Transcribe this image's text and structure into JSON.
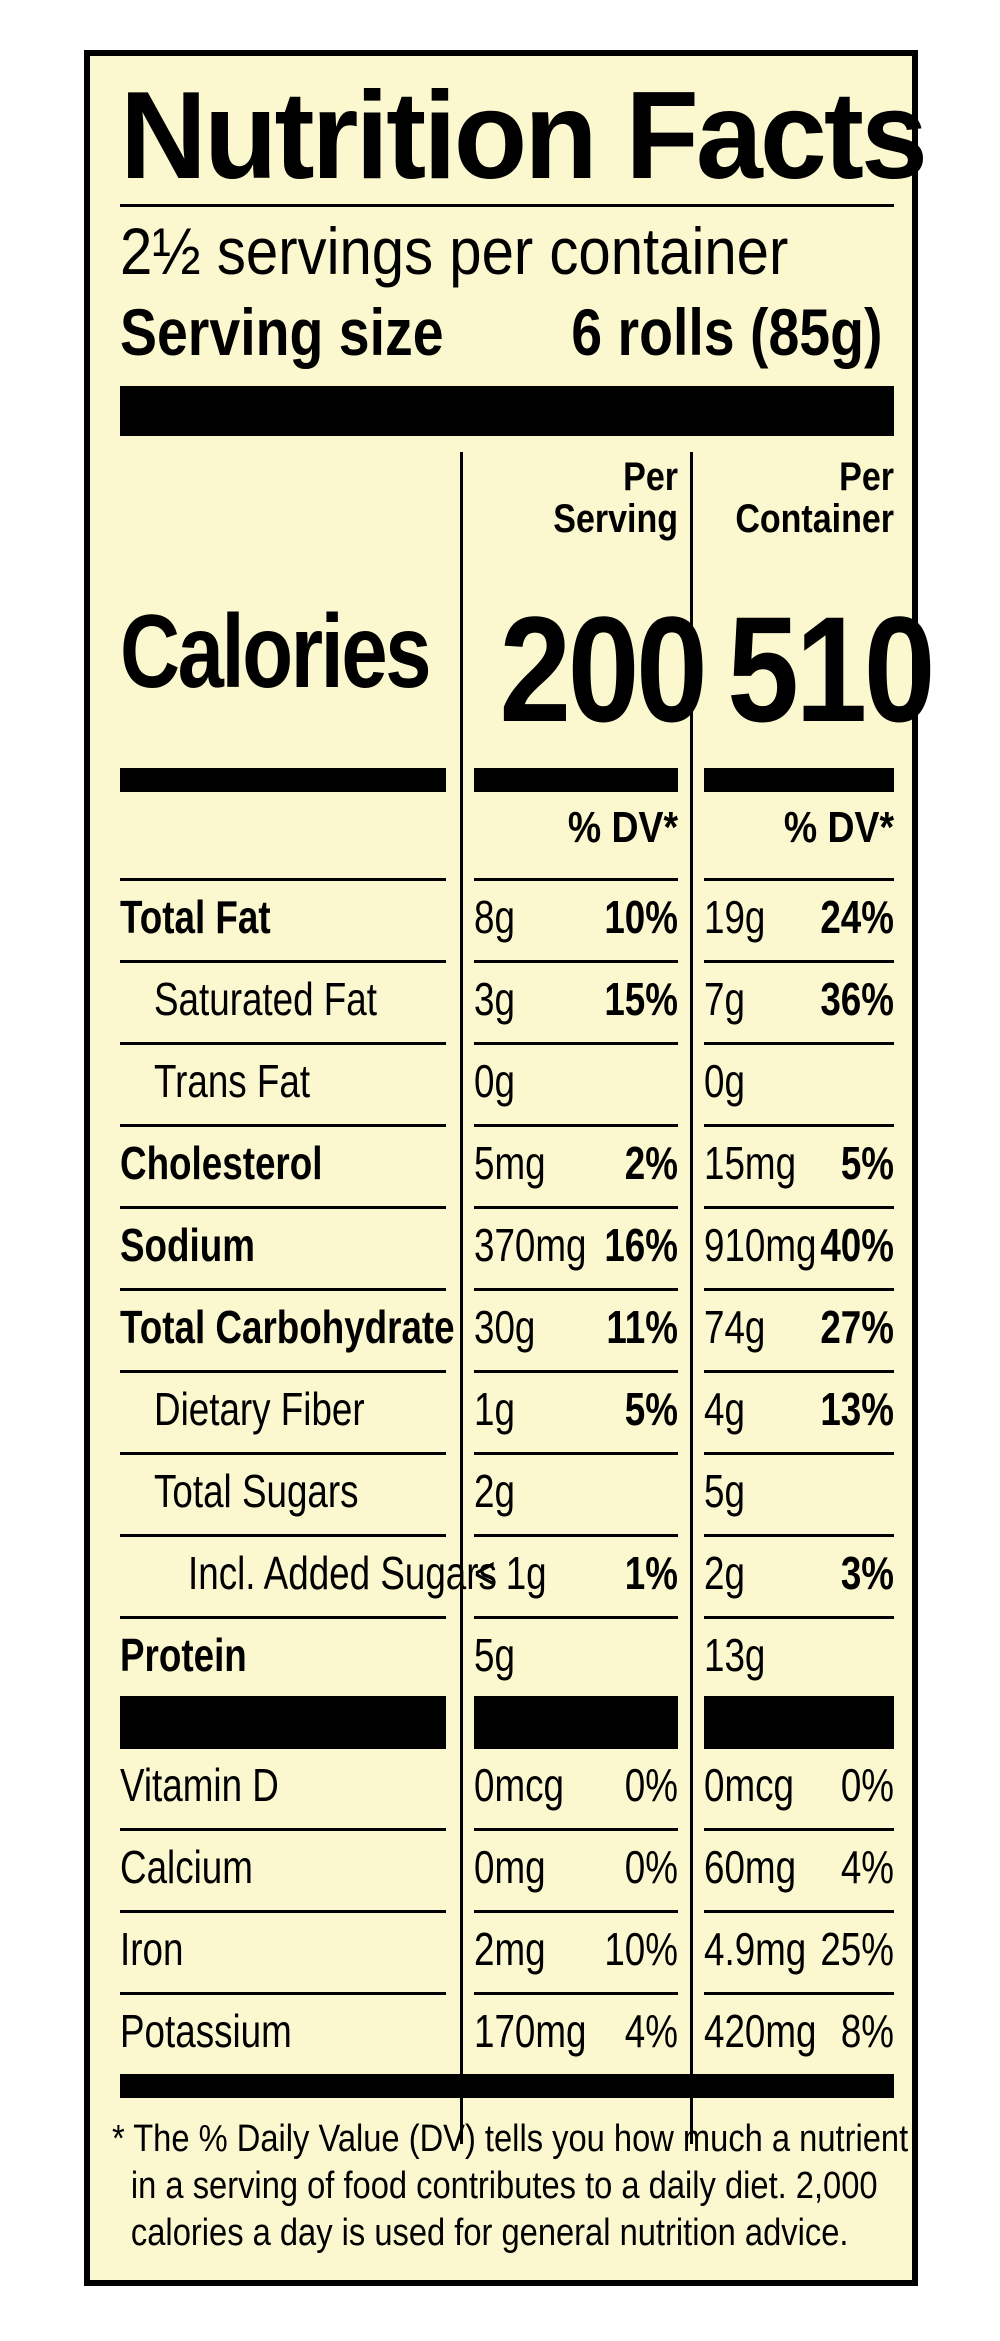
{
  "label": {
    "title": "Nutrition  Facts",
    "servings_per_container": "2½ servings per container",
    "serving_size_label": "Serving size",
    "serving_size_value": "6 rolls (85g)",
    "columns": {
      "per_serving": [
        "Per",
        "Serving"
      ],
      "per_container": [
        "Per",
        "Container"
      ]
    },
    "calories": {
      "label": "Calories",
      "per_serving": "200",
      "per_container": "510"
    },
    "dv_header": "% DV*",
    "nutrients": [
      {
        "name": "Total Fat",
        "bold": true,
        "indent": 0,
        "s_amt": "8g",
        "s_dv": "10%",
        "c_amt": "19g",
        "c_dv": "24%"
      },
      {
        "name": "Saturated Fat",
        "bold": false,
        "indent": 1,
        "s_amt": "3g",
        "s_dv": "15%",
        "c_amt": "7g",
        "c_dv": "36%"
      },
      {
        "name": "Trans Fat",
        "bold": false,
        "indent": 1,
        "s_amt": "0g",
        "s_dv": "",
        "c_amt": "0g",
        "c_dv": ""
      },
      {
        "name": "Cholesterol",
        "bold": true,
        "indent": 0,
        "s_amt": "5mg",
        "s_dv": "2%",
        "c_amt": "15mg",
        "c_dv": "5%"
      },
      {
        "name": "Sodium",
        "bold": true,
        "indent": 0,
        "s_amt": "370mg",
        "s_dv": "16%",
        "c_amt": "910mg",
        "c_dv": "40%"
      },
      {
        "name": "Total Carbohydrate",
        "bold": true,
        "indent": 0,
        "s_amt": "30g",
        "s_dv": "11%",
        "c_amt": "74g",
        "c_dv": "27%"
      },
      {
        "name": "Dietary Fiber",
        "bold": false,
        "indent": 1,
        "s_amt": "1g",
        "s_dv": "5%",
        "c_amt": "4g",
        "c_dv": "13%"
      },
      {
        "name": "Total Sugars",
        "bold": false,
        "indent": 1,
        "s_amt": "2g",
        "s_dv": "",
        "c_amt": "5g",
        "c_dv": ""
      },
      {
        "name": "Incl. Added Sugars",
        "bold": false,
        "indent": 2,
        "s_amt": "< 1g",
        "s_dv": "1%",
        "c_amt": "2g",
        "c_dv": "3%"
      },
      {
        "name": "Protein",
        "bold": true,
        "indent": 0,
        "s_amt": "5g",
        "s_dv": "",
        "c_amt": "13g",
        "c_dv": ""
      }
    ],
    "vitamins": [
      {
        "name": "Vitamin D",
        "s_amt": "0mcg",
        "s_dv": "0%",
        "c_amt": "0mcg",
        "c_dv": "0%"
      },
      {
        "name": "Calcium",
        "s_amt": "0mg",
        "s_dv": "0%",
        "c_amt": "60mg",
        "c_dv": "4%"
      },
      {
        "name": "Iron",
        "s_amt": "2mg",
        "s_dv": "10%",
        "c_amt": "4.9mg",
        "c_dv": "25%"
      },
      {
        "name": "Potassium",
        "s_amt": "170mg",
        "s_dv": "4%",
        "c_amt": "420mg",
        "c_dv": "8%"
      }
    ],
    "footnote": [
      "* The % Daily Value (DV) tells you how much a nutrient",
      "in a serving of food contributes to a daily diet. 2,000",
      "calories a day is used for general nutrition advice."
    ],
    "colors": {
      "background": "#fbf7cf",
      "ink": "#000000"
    }
  }
}
